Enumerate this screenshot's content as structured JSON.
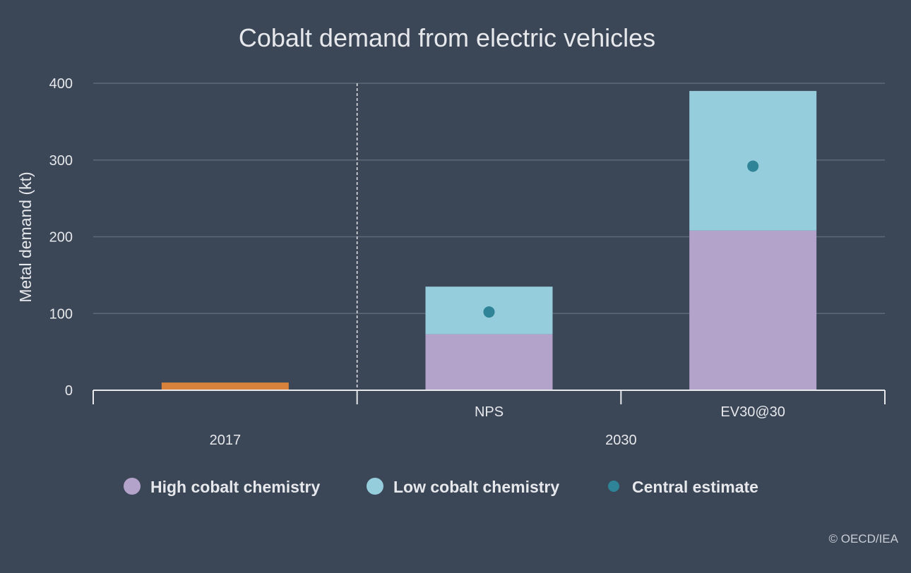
{
  "chart_data": {
    "type": "bar",
    "title": "Cobalt demand from electric vehicles",
    "ylabel": "Metal demand (kt)",
    "ylim": [
      0,
      400
    ],
    "yticks": [
      0,
      100,
      200,
      300,
      400
    ],
    "grid": true,
    "groups": [
      {
        "label": "2017",
        "categories": [
          ""
        ]
      },
      {
        "label": "2030",
        "categories": [
          "NPS",
          "EV30@30"
        ]
      }
    ],
    "bars": [
      {
        "group": "2017",
        "category": "",
        "total": 10,
        "color": "#d9823b"
      },
      {
        "group": "2030",
        "category": "NPS",
        "high_cobalt": 73,
        "low_cobalt": 62,
        "central_estimate": 102
      },
      {
        "group": "2030",
        "category": "EV30@30",
        "high_cobalt": 208,
        "low_cobalt": 182,
        "central_estimate": 292
      }
    ],
    "series": [
      {
        "name": "High cobalt chemistry",
        "color": "#b3a2c9",
        "marker": "bar"
      },
      {
        "name": "Low cobalt chemistry",
        "color": "#96cddc",
        "marker": "bar"
      },
      {
        "name": "Central estimate",
        "color": "#2f8498",
        "marker": "dot"
      }
    ],
    "legend_position": "bottom"
  },
  "credit": "© OECD/IEA"
}
